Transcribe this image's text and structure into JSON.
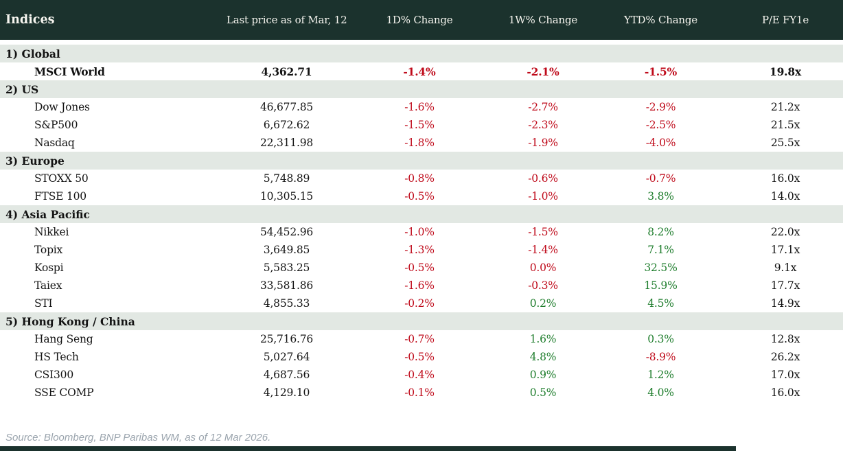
{
  "chart_data": {
    "type": "table",
    "title": "Indices",
    "columns": [
      "Indices",
      "Last price as of Mar, 12",
      "1D% Change",
      "1W% Change",
      "YTD% Change",
      "P/E FY1e"
    ],
    "sections": [
      {
        "label": "1) Global",
        "rows": [
          {
            "name": "MSCI World",
            "last_price": "4,362.71",
            "d1": "-1.4%",
            "w1": "-2.1%",
            "ytd": "-1.5%",
            "pe": "19.8x",
            "emphasis": true
          }
        ]
      },
      {
        "label": "2) US",
        "rows": [
          {
            "name": "Dow Jones",
            "last_price": "46,677.85",
            "d1": "-1.6%",
            "w1": "-2.7%",
            "ytd": "-2.9%",
            "pe": "21.2x"
          },
          {
            "name": "S&P500",
            "last_price": "6,672.62",
            "d1": "-1.5%",
            "w1": "-2.3%",
            "ytd": "-2.5%",
            "pe": "21.5x"
          },
          {
            "name": "Nasdaq",
            "last_price": "22,311.98",
            "d1": "-1.8%",
            "w1": "-1.9%",
            "ytd": "-4.0%",
            "pe": "25.5x"
          }
        ]
      },
      {
        "label": "3) Europe",
        "rows": [
          {
            "name": "STOXX 50",
            "last_price": "5,748.89",
            "d1": "-0.8%",
            "w1": "-0.6%",
            "ytd": "-0.7%",
            "pe": "16.0x"
          },
          {
            "name": "FTSE 100",
            "last_price": "10,305.15",
            "d1": "-0.5%",
            "w1": "-1.0%",
            "ytd": "3.8%",
            "pe": "14.0x"
          }
        ]
      },
      {
        "label": "4) Asia Pacific",
        "rows": [
          {
            "name": "Nikkei",
            "last_price": "54,452.96",
            "d1": "-1.0%",
            "w1": "-1.5%",
            "ytd": "8.2%",
            "pe": "22.0x"
          },
          {
            "name": "Topix",
            "last_price": "3,649.85",
            "d1": "-1.3%",
            "w1": "-1.4%",
            "ytd": "7.1%",
            "pe": "17.1x"
          },
          {
            "name": "Kospi",
            "last_price": "5,583.25",
            "d1": "-0.5%",
            "w1": "0.0%",
            "ytd": "32.5%",
            "pe": "9.1x"
          },
          {
            "name": "Taiex",
            "last_price": "33,581.86",
            "d1": "-1.6%",
            "w1": "-0.3%",
            "ytd": "15.9%",
            "pe": "17.7x"
          },
          {
            "name": "STI",
            "last_price": "4,855.33",
            "d1": "-0.2%",
            "w1": "0.2%",
            "ytd": "4.5%",
            "pe": "14.9x"
          }
        ]
      },
      {
        "label": "5) Hong Kong / China",
        "rows": [
          {
            "name": "Hang Seng",
            "last_price": "25,716.76",
            "d1": "-0.7%",
            "w1": "1.6%",
            "ytd": "0.3%",
            "pe": "12.8x"
          },
          {
            "name": "HS Tech",
            "last_price": "5,027.64",
            "d1": "-0.5%",
            "w1": "4.8%",
            "ytd": "-8.9%",
            "pe": "26.2x"
          },
          {
            "name": "CSI300",
            "last_price": "4,687.56",
            "d1": "-0.4%",
            "w1": "0.9%",
            "ytd": "1.2%",
            "pe": "17.0x"
          },
          {
            "name": "SSE COMP",
            "last_price": "4,129.10",
            "d1": "-0.1%",
            "w1": "0.5%",
            "ytd": "4.0%",
            "pe": "16.0x"
          }
        ]
      }
    ],
    "color_rule": "negative or zero percentage = red, positive percentage = green"
  },
  "footer": {
    "source": "Source: Bloomberg, BNP Paribas WM, as of 12 Mar 2026."
  },
  "colors": {
    "header_background": "#1b322d",
    "section_band_background": "#e2e8e3",
    "negative_change": "#bf0a1a",
    "positive_change": "#1e7d2c",
    "body_text": "#131313",
    "header_text": "#f6f5ef",
    "source_text": "#9aa4ad",
    "bottom_bar": "#1b322d"
  }
}
